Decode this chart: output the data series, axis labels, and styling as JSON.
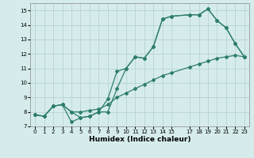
{
  "title": "",
  "xlabel": "Humidex (Indice chaleur)",
  "ylabel": "",
  "bg_color": "#d6ecec",
  "grid_color": "#b0cece",
  "line_color": "#2e7d6e",
  "xlim": [
    -0.5,
    23.5
  ],
  "ylim": [
    7.0,
    15.5
  ],
  "yticks": [
    7,
    8,
    9,
    10,
    11,
    12,
    13,
    14,
    15
  ],
  "xticks": [
    0,
    1,
    2,
    3,
    4,
    5,
    6,
    7,
    8,
    9,
    10,
    11,
    12,
    13,
    14,
    15,
    17,
    18,
    19,
    20,
    21,
    22,
    23
  ],
  "xtick_labels": [
    "0",
    "1",
    "2",
    "3",
    "4",
    "5",
    "6",
    "7",
    "8",
    "9",
    "10",
    "11",
    "12",
    "13",
    "14",
    "15",
    "17",
    "18",
    "19",
    "20",
    "21",
    "22",
    "23"
  ],
  "line1_x": [
    0,
    1,
    2,
    3,
    4,
    5,
    6,
    7,
    8,
    9,
    10,
    11,
    12,
    13,
    14,
    15,
    17,
    18,
    19,
    20,
    21,
    22,
    23
  ],
  "line1_y": [
    7.8,
    7.7,
    8.4,
    8.5,
    7.3,
    7.6,
    7.7,
    8.0,
    8.0,
    9.6,
    11.0,
    11.8,
    11.7,
    12.5,
    14.4,
    14.6,
    14.7,
    14.7,
    15.1,
    14.3,
    13.8,
    12.7,
    11.8
  ],
  "line2_x": [
    0,
    1,
    2,
    3,
    4,
    5,
    6,
    7,
    8,
    9,
    10,
    11,
    12,
    13,
    14,
    15,
    17,
    18,
    19,
    20,
    21,
    22,
    23
  ],
  "line2_y": [
    7.8,
    7.7,
    8.4,
    8.5,
    8.0,
    7.6,
    7.7,
    8.0,
    8.9,
    10.8,
    11.0,
    11.8,
    11.7,
    12.5,
    14.4,
    14.6,
    14.7,
    14.7,
    15.1,
    14.3,
    13.8,
    12.7,
    11.8
  ],
  "line3_x": [
    0,
    1,
    2,
    3,
    4,
    5,
    6,
    7,
    8,
    9,
    10,
    11,
    12,
    13,
    14,
    15,
    17,
    18,
    19,
    20,
    21,
    22,
    23
  ],
  "line3_y": [
    7.8,
    7.7,
    8.4,
    8.5,
    8.0,
    8.0,
    8.1,
    8.2,
    8.5,
    9.0,
    9.3,
    9.6,
    9.9,
    10.2,
    10.5,
    10.7,
    11.1,
    11.3,
    11.5,
    11.7,
    11.8,
    11.9,
    11.8
  ]
}
